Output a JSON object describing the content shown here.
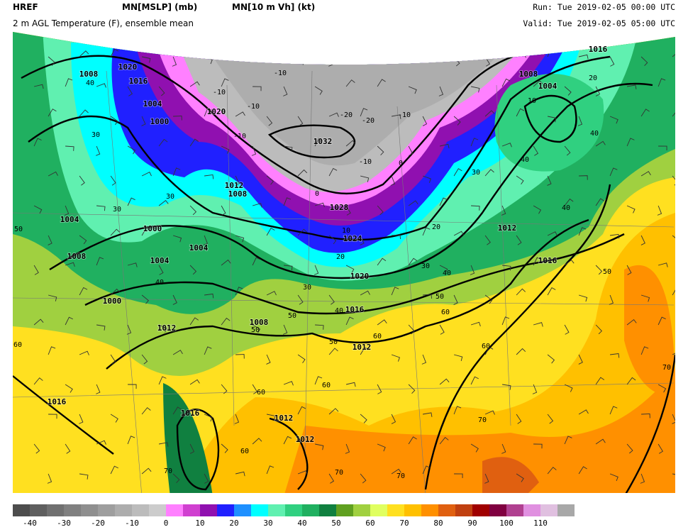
{
  "header": {
    "model": "HREF",
    "field1": "MN[MSLP] (mb)",
    "field2": "MN[10 m Vh] (kt)",
    "run": "Run: Tue 2019-02-05 00:00 UTC",
    "subtitle": "2 m AGL Temperature (F), ensemble mean",
    "valid": "Valid: Tue 2019-02-05 05:00 UTC"
  },
  "map": {
    "pressure_labels": [
      "1020",
      "1016",
      "1008",
      "1004",
      "1000",
      "1020",
      "1032",
      "1028",
      "1024",
      "1020",
      "1016",
      "1012",
      "1008",
      "1012",
      "1016",
      "1012",
      "1012",
      "1016",
      "1000",
      "1004",
      "1004",
      "1008",
      "1004",
      "1000",
      "1012",
      "1008",
      "1008",
      "1004",
      "1016",
      "1012",
      "1016"
    ],
    "temperature_labels": [
      "-10",
      "-10",
      "-10",
      "-10",
      "-20",
      "-20",
      "-10",
      "-10",
      "0",
      "0",
      "10",
      "20",
      "30",
      "40",
      "50",
      "60",
      "60",
      "50",
      "40",
      "30",
      "20",
      "60",
      "70",
      "60",
      "60",
      "70",
      "70",
      "70",
      "60",
      "70",
      "50",
      "50",
      "40",
      "30",
      "30",
      "30",
      "40",
      "50",
      "60",
      "50",
      "40",
      "40",
      "40",
      "30",
      "20",
      "10"
    ]
  },
  "colorbar": {
    "colors": [
      "#4d4d4d",
      "#5f5f5f",
      "#707070",
      "#808080",
      "#8f8f8f",
      "#9e9e9e",
      "#adadad",
      "#bcbcbc",
      "#cccccc",
      "#ff80ff",
      "#d040d0",
      "#9010b0",
      "#2020ff",
      "#1e90ff",
      "#00ffff",
      "#60f0b0",
      "#30d080",
      "#20b060",
      "#108040",
      "#60a020",
      "#a0d040",
      "#e0ff60",
      "#ffe020",
      "#ffc000",
      "#ff9000",
      "#e06010",
      "#c04010",
      "#a00000",
      "#800040",
      "#b04090",
      "#e090e0",
      "#e0c0e0",
      "#a8a8a8"
    ],
    "ticks": [
      -40,
      -30,
      -20,
      -10,
      0,
      10,
      20,
      30,
      40,
      50,
      60,
      70,
      80,
      90,
      100,
      110
    ]
  }
}
